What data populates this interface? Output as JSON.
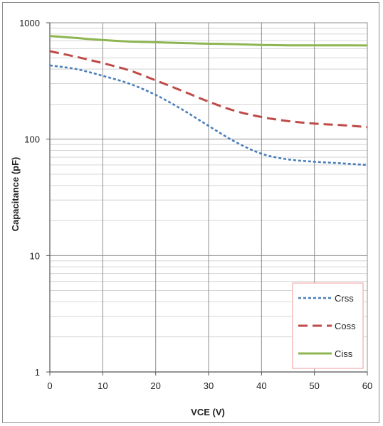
{
  "chart_data": {
    "type": "line",
    "title": "",
    "xlabel": "VCE  (V)",
    "ylabel": "Capacitance  (pF)",
    "xlim": [
      0,
      60
    ],
    "ylim": [
      1,
      1000
    ],
    "y_scale": "log",
    "grid": true,
    "legend_position": "bottom-right",
    "x_ticks": [
      "0",
      "10",
      "20",
      "30",
      "40",
      "50",
      "60"
    ],
    "y_ticks": [
      "1",
      "10",
      "100",
      "1000"
    ],
    "series": [
      {
        "name": "Crss",
        "color": "#4a7ebb",
        "style": "dotted",
        "x": [
          0,
          5,
          10,
          15,
          20,
          25,
          30,
          35,
          40,
          45,
          50,
          55,
          60
        ],
        "y": [
          430,
          400,
          350,
          300,
          240,
          180,
          130,
          95,
          75,
          67,
          64,
          62,
          60
        ]
      },
      {
        "name": "Coss",
        "color": "#be4b48",
        "style": "dashed",
        "x": [
          0,
          5,
          10,
          15,
          20,
          25,
          30,
          35,
          40,
          45,
          50,
          55,
          60
        ],
        "y": [
          570,
          510,
          450,
          390,
          320,
          260,
          210,
          175,
          155,
          143,
          136,
          132,
          127
        ]
      },
      {
        "name": "Ciss",
        "color": "#8db551",
        "style": "solid",
        "x": [
          0,
          5,
          10,
          15,
          20,
          25,
          30,
          35,
          40,
          45,
          50,
          55,
          60
        ],
        "y": [
          770,
          740,
          710,
          690,
          680,
          670,
          660,
          655,
          645,
          640,
          640,
          640,
          638
        ]
      }
    ]
  }
}
